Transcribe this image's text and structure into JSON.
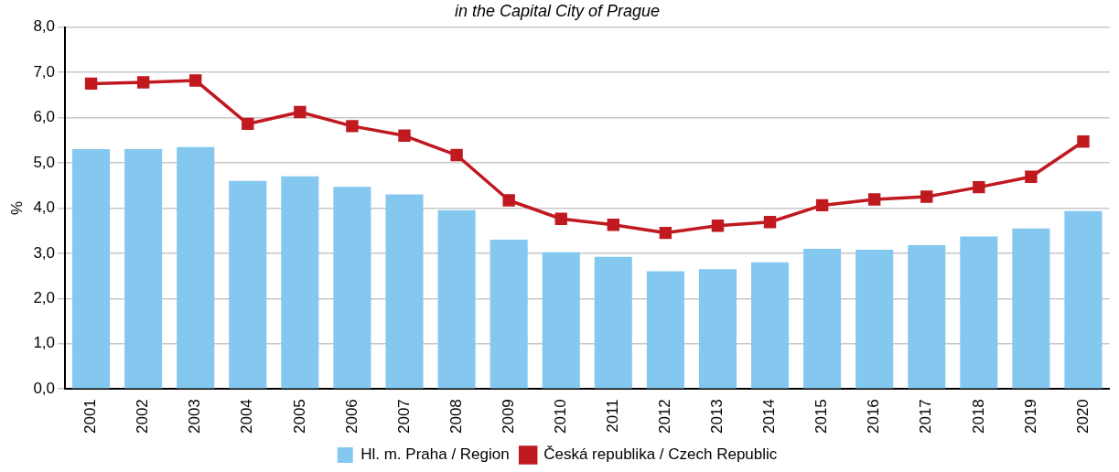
{
  "chart_data": {
    "type": "bar",
    "title": "in the Capital City of Prague",
    "ylabel": "%",
    "categories": [
      "2001",
      "2002",
      "2003",
      "2004",
      "2005",
      "2006",
      "2007",
      "2008",
      "2009",
      "2010",
      "2011",
      "2012",
      "2013",
      "2014",
      "2015",
      "2016",
      "2017",
      "2018",
      "2019",
      "2020"
    ],
    "series": [
      {
        "name": "Hl. m. Praha / Region",
        "color": "#85c8ef",
        "values": [
          5.3,
          5.3,
          5.35,
          4.6,
          4.7,
          4.47,
          4.3,
          3.95,
          3.3,
          3.02,
          2.92,
          2.6,
          2.65,
          2.8,
          3.1,
          3.08,
          3.18,
          3.37,
          3.55,
          3.93
        ]
      },
      {
        "name": "Česká republika / Czech Republic",
        "type": "line",
        "color": "#c0191f",
        "values": [
          6.75,
          6.78,
          6.82,
          5.86,
          6.12,
          5.81,
          5.6,
          5.17,
          4.17,
          3.76,
          3.63,
          3.45,
          3.61,
          3.69,
          4.06,
          4.19,
          4.25,
          4.46,
          4.69,
          5.47
        ]
      }
    ],
    "ylim": [
      0,
      8
    ],
    "yticks": [
      {
        "value": 0,
        "label": "0,0"
      },
      {
        "value": 1,
        "label": "1,0"
      },
      {
        "value": 2,
        "label": "2,0"
      },
      {
        "value": 3,
        "label": "3,0"
      },
      {
        "value": 4,
        "label": "4,0"
      },
      {
        "value": 5,
        "label": "5,0"
      },
      {
        "value": 6,
        "label": "6,0"
      },
      {
        "value": 7,
        "label": "7,0"
      },
      {
        "value": 8,
        "label": "8,0"
      }
    ],
    "grid": "y",
    "legend": "bottom",
    "marker": "square",
    "line_style": "solid"
  }
}
